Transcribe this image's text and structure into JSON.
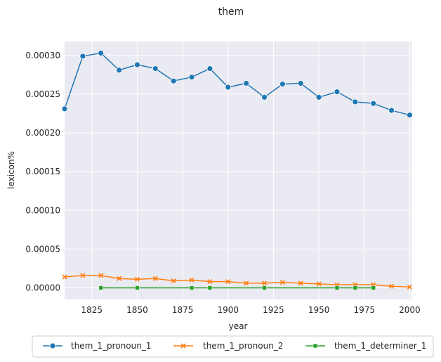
{
  "chart_data": {
    "type": "line",
    "title": "them",
    "xlabel": "year",
    "ylabel": "lexicon%",
    "xlim": [
      1810,
      2001
    ],
    "ylim": [
      -1.5e-05,
      0.000318
    ],
    "xticks": [
      1825,
      1850,
      1875,
      1900,
      1925,
      1950,
      1975,
      2000
    ],
    "yticks": [
      0.0,
      5e-05,
      0.0001,
      0.00015,
      0.0002,
      0.00025,
      0.0003
    ],
    "ytick_labels": [
      "0.00000",
      "0.00005",
      "0.00010",
      "0.00015",
      "0.00020",
      "0.00025",
      "0.00030"
    ],
    "grid": true,
    "legend_position": "bottom-center",
    "series": [
      {
        "name": "them_1_pronoun_1",
        "color": "#1f77b4",
        "marker": "circle",
        "x": [
          1810,
          1820,
          1830,
          1840,
          1850,
          1860,
          1870,
          1880,
          1890,
          1900,
          1910,
          1920,
          1930,
          1940,
          1950,
          1960,
          1970,
          1980,
          1990,
          2000
        ],
        "y": [
          0.000231,
          0.000299,
          0.000303,
          0.000281,
          0.000288,
          0.000283,
          0.000267,
          0.000272,
          0.000283,
          0.000259,
          0.000264,
          0.000246,
          0.000263,
          0.000264,
          0.000246,
          0.000253,
          0.00024,
          0.000238,
          0.000229,
          0.000223
        ]
      },
      {
        "name": "them_1_pronoun_2",
        "color": "#ff7f0e",
        "marker": "x",
        "x": [
          1810,
          1820,
          1830,
          1840,
          1850,
          1860,
          1870,
          1880,
          1890,
          1900,
          1910,
          1920,
          1930,
          1940,
          1950,
          1960,
          1970,
          1980,
          1990,
          2000
        ],
        "y": [
          1.4e-05,
          1.6e-05,
          1.6e-05,
          1.2e-05,
          1.1e-05,
          1.2e-05,
          9e-06,
          1e-05,
          8e-06,
          8e-06,
          6e-06,
          6e-06,
          7e-06,
          6e-06,
          5e-06,
          4e-06,
          4e-06,
          4e-06,
          2e-06,
          1e-06
        ]
      },
      {
        "name": "them_1_determiner_1",
        "color": "#2ca02c",
        "marker": "square",
        "x": [
          1830,
          1850,
          1880,
          1890,
          1920,
          1960,
          1970,
          1980
        ],
        "y": [
          0.0,
          0.0,
          0.0,
          0.0,
          0.0,
          0.0,
          0.0,
          0.0
        ]
      }
    ]
  }
}
